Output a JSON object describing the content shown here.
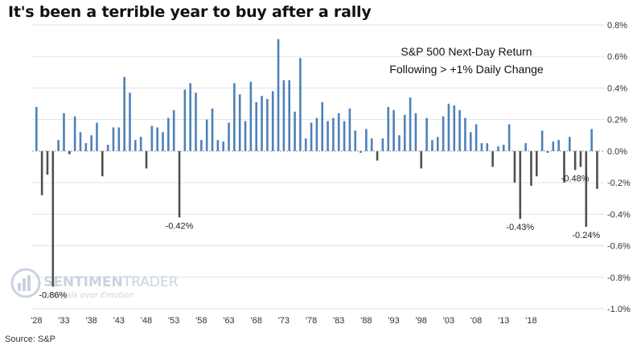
{
  "title": "It's been a terrible year to buy after a rally",
  "source": "Source: S&P",
  "watermark": {
    "brand_a": "SENTIMEN",
    "brand_b": "TRADER",
    "tagline": "analysis over Emotion"
  },
  "colors": {
    "positive": "#4e81b8",
    "negative": "#505050",
    "grid": "#e3e3e3",
    "zero": "#9a9a9a"
  },
  "chart_data": {
    "type": "bar",
    "subtitle": [
      "S&P 500 Next-Day Return",
      "Following > +1% Daily Change"
    ],
    "first_year": 1928,
    "ylim": [
      -1.0,
      0.8
    ],
    "yticks": [
      0.8,
      0.6,
      0.4,
      0.2,
      0.0,
      -0.2,
      -0.4,
      -0.6,
      -0.8,
      -1.0
    ],
    "ytick_labels": [
      "0.8%",
      "0.6%",
      "0.4%",
      "0.2%",
      "0.0%",
      "-0.2%",
      "-0.4%",
      "-0.6%",
      "-0.8%",
      "-1.0%"
    ],
    "xtick_labels": [
      "'28",
      "'33",
      "'38",
      "'43",
      "'48",
      "'53",
      "'58",
      "'63",
      "'68",
      "'73",
      "'78",
      "'83",
      "'88",
      "'93",
      "'98",
      "'03",
      "'08",
      "'13",
      "'18"
    ],
    "grid": true,
    "values": [
      0.28,
      -0.28,
      -0.15,
      -0.86,
      0.07,
      0.24,
      -0.02,
      0.22,
      0.12,
      0.05,
      0.1,
      0.18,
      -0.16,
      0.04,
      0.15,
      0.15,
      0.47,
      0.37,
      0.07,
      0.09,
      -0.11,
      0.16,
      0.15,
      0.12,
      0.21,
      0.26,
      -0.42,
      0.39,
      0.43,
      0.37,
      0.07,
      0.2,
      0.27,
      0.07,
      0.06,
      0.18,
      0.43,
      0.36,
      0.19,
      0.44,
      0.31,
      0.35,
      0.33,
      0.38,
      0.71,
      0.45,
      0.45,
      0.25,
      0.59,
      0.08,
      0.18,
      0.21,
      0.31,
      0.19,
      0.21,
      0.24,
      0.19,
      0.27,
      0.13,
      -0.01,
      0.14,
      0.08,
      -0.06,
      0.08,
      0.28,
      0.26,
      0.1,
      0.23,
      0.34,
      0.24,
      -0.11,
      0.21,
      0.07,
      0.09,
      0.22,
      0.3,
      0.29,
      0.26,
      0.21,
      0.12,
      0.17,
      0.05,
      0.05,
      -0.1,
      0.03,
      0.04,
      0.17,
      -0.2,
      -0.43,
      0.05,
      -0.22,
      -0.16,
      0.13,
      -0.01,
      0.06,
      0.07,
      -0.2,
      0.09,
      -0.12,
      -0.1,
      -0.48,
      0.14,
      -0.24
    ],
    "annotations": [
      {
        "index": 3,
        "text": "-0.86%"
      },
      {
        "index": 26,
        "text": "-0.42%"
      },
      {
        "index": 88,
        "text": "-0.43%"
      },
      {
        "index": 98,
        "text": "-0.48%"
      },
      {
        "index": 100,
        "text": "-0.24%"
      }
    ]
  }
}
